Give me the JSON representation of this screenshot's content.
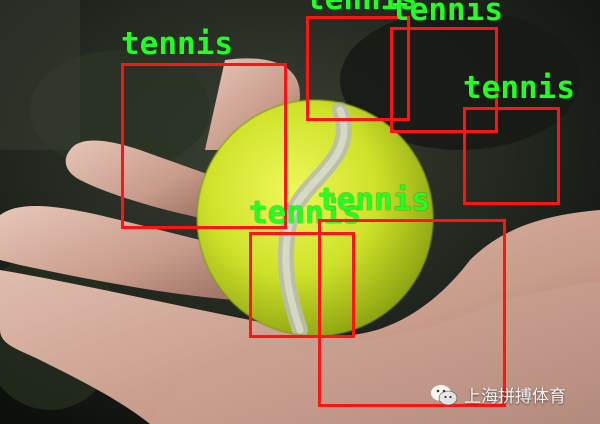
{
  "image": {
    "colors": {
      "box": "#ff1414",
      "label": "#22ff22",
      "ball": "#d6ec2e",
      "skin": "#d9b7a8"
    }
  },
  "detections": [
    {
      "label": "tennis"
    },
    {
      "label": "tennis"
    },
    {
      "label": "tennis"
    },
    {
      "label": "tennis"
    },
    {
      "label": "tennis"
    },
    {
      "label": "tennis"
    }
  ],
  "watermark": {
    "icon": "wechat-icon",
    "text": "上海拼搏体育"
  }
}
